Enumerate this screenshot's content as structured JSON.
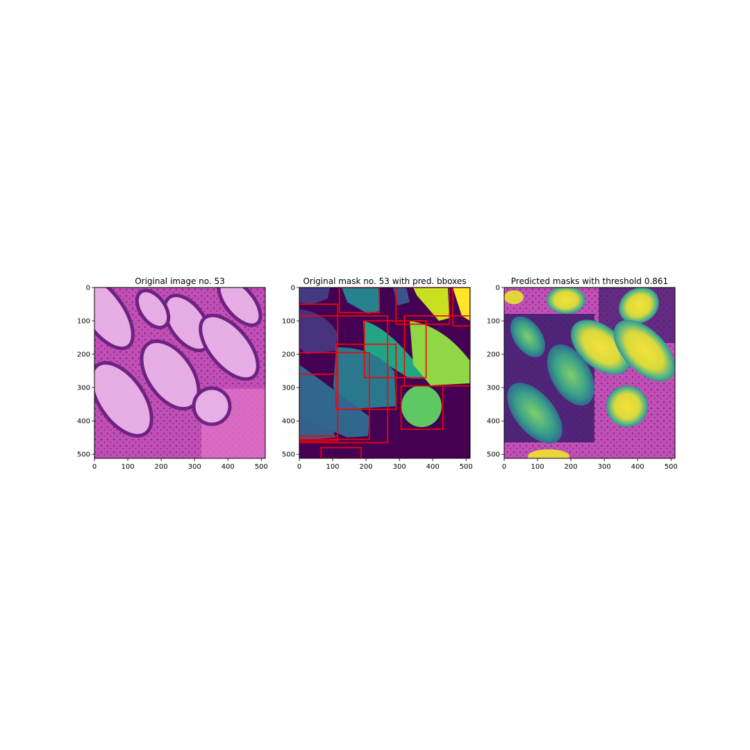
{
  "panels": [
    {
      "id": "panel1",
      "title": "Original image no. 53",
      "xticks": [
        0,
        100,
        200,
        300,
        400,
        500
      ],
      "yticks": [
        0,
        100,
        200,
        300,
        400,
        500
      ]
    },
    {
      "id": "panel2",
      "title": "Original mask no. 53 with pred. bboxes",
      "xticks": [
        0,
        100,
        200,
        300,
        400,
        500
      ],
      "yticks": [
        0,
        100,
        200,
        300,
        400,
        500
      ]
    },
    {
      "id": "panel3",
      "title": "Predicted masks with threshold 0.861",
      "xticks": [
        0,
        100,
        200,
        300,
        400,
        500
      ],
      "yticks": [
        0,
        100,
        200,
        300,
        400,
        500
      ]
    }
  ],
  "image_extent": [
    0,
    512
  ],
  "colors": {
    "tissue_pink": "#d65fc4",
    "tissue_purple": "#7e2a8a",
    "mask_background": "#440154",
    "bbox_red": "#ff0000",
    "pred_yellow": "#e8d63a"
  },
  "pred_bboxes": [
    [
      0,
      50,
      115,
      460
    ],
    [
      0,
      85,
      265,
      465
    ],
    [
      120,
      0,
      240,
      75
    ],
    [
      0,
      195,
      210,
      455
    ],
    [
      0,
      260,
      115,
      445
    ],
    [
      195,
      100,
      380,
      270
    ],
    [
      110,
      170,
      290,
      365
    ],
    [
      315,
      85,
      512,
      295
    ],
    [
      290,
      0,
      450,
      110
    ],
    [
      460,
      0,
      512,
      115
    ],
    [
      305,
      295,
      430,
      425
    ],
    [
      65,
      480,
      185,
      512
    ]
  ]
}
